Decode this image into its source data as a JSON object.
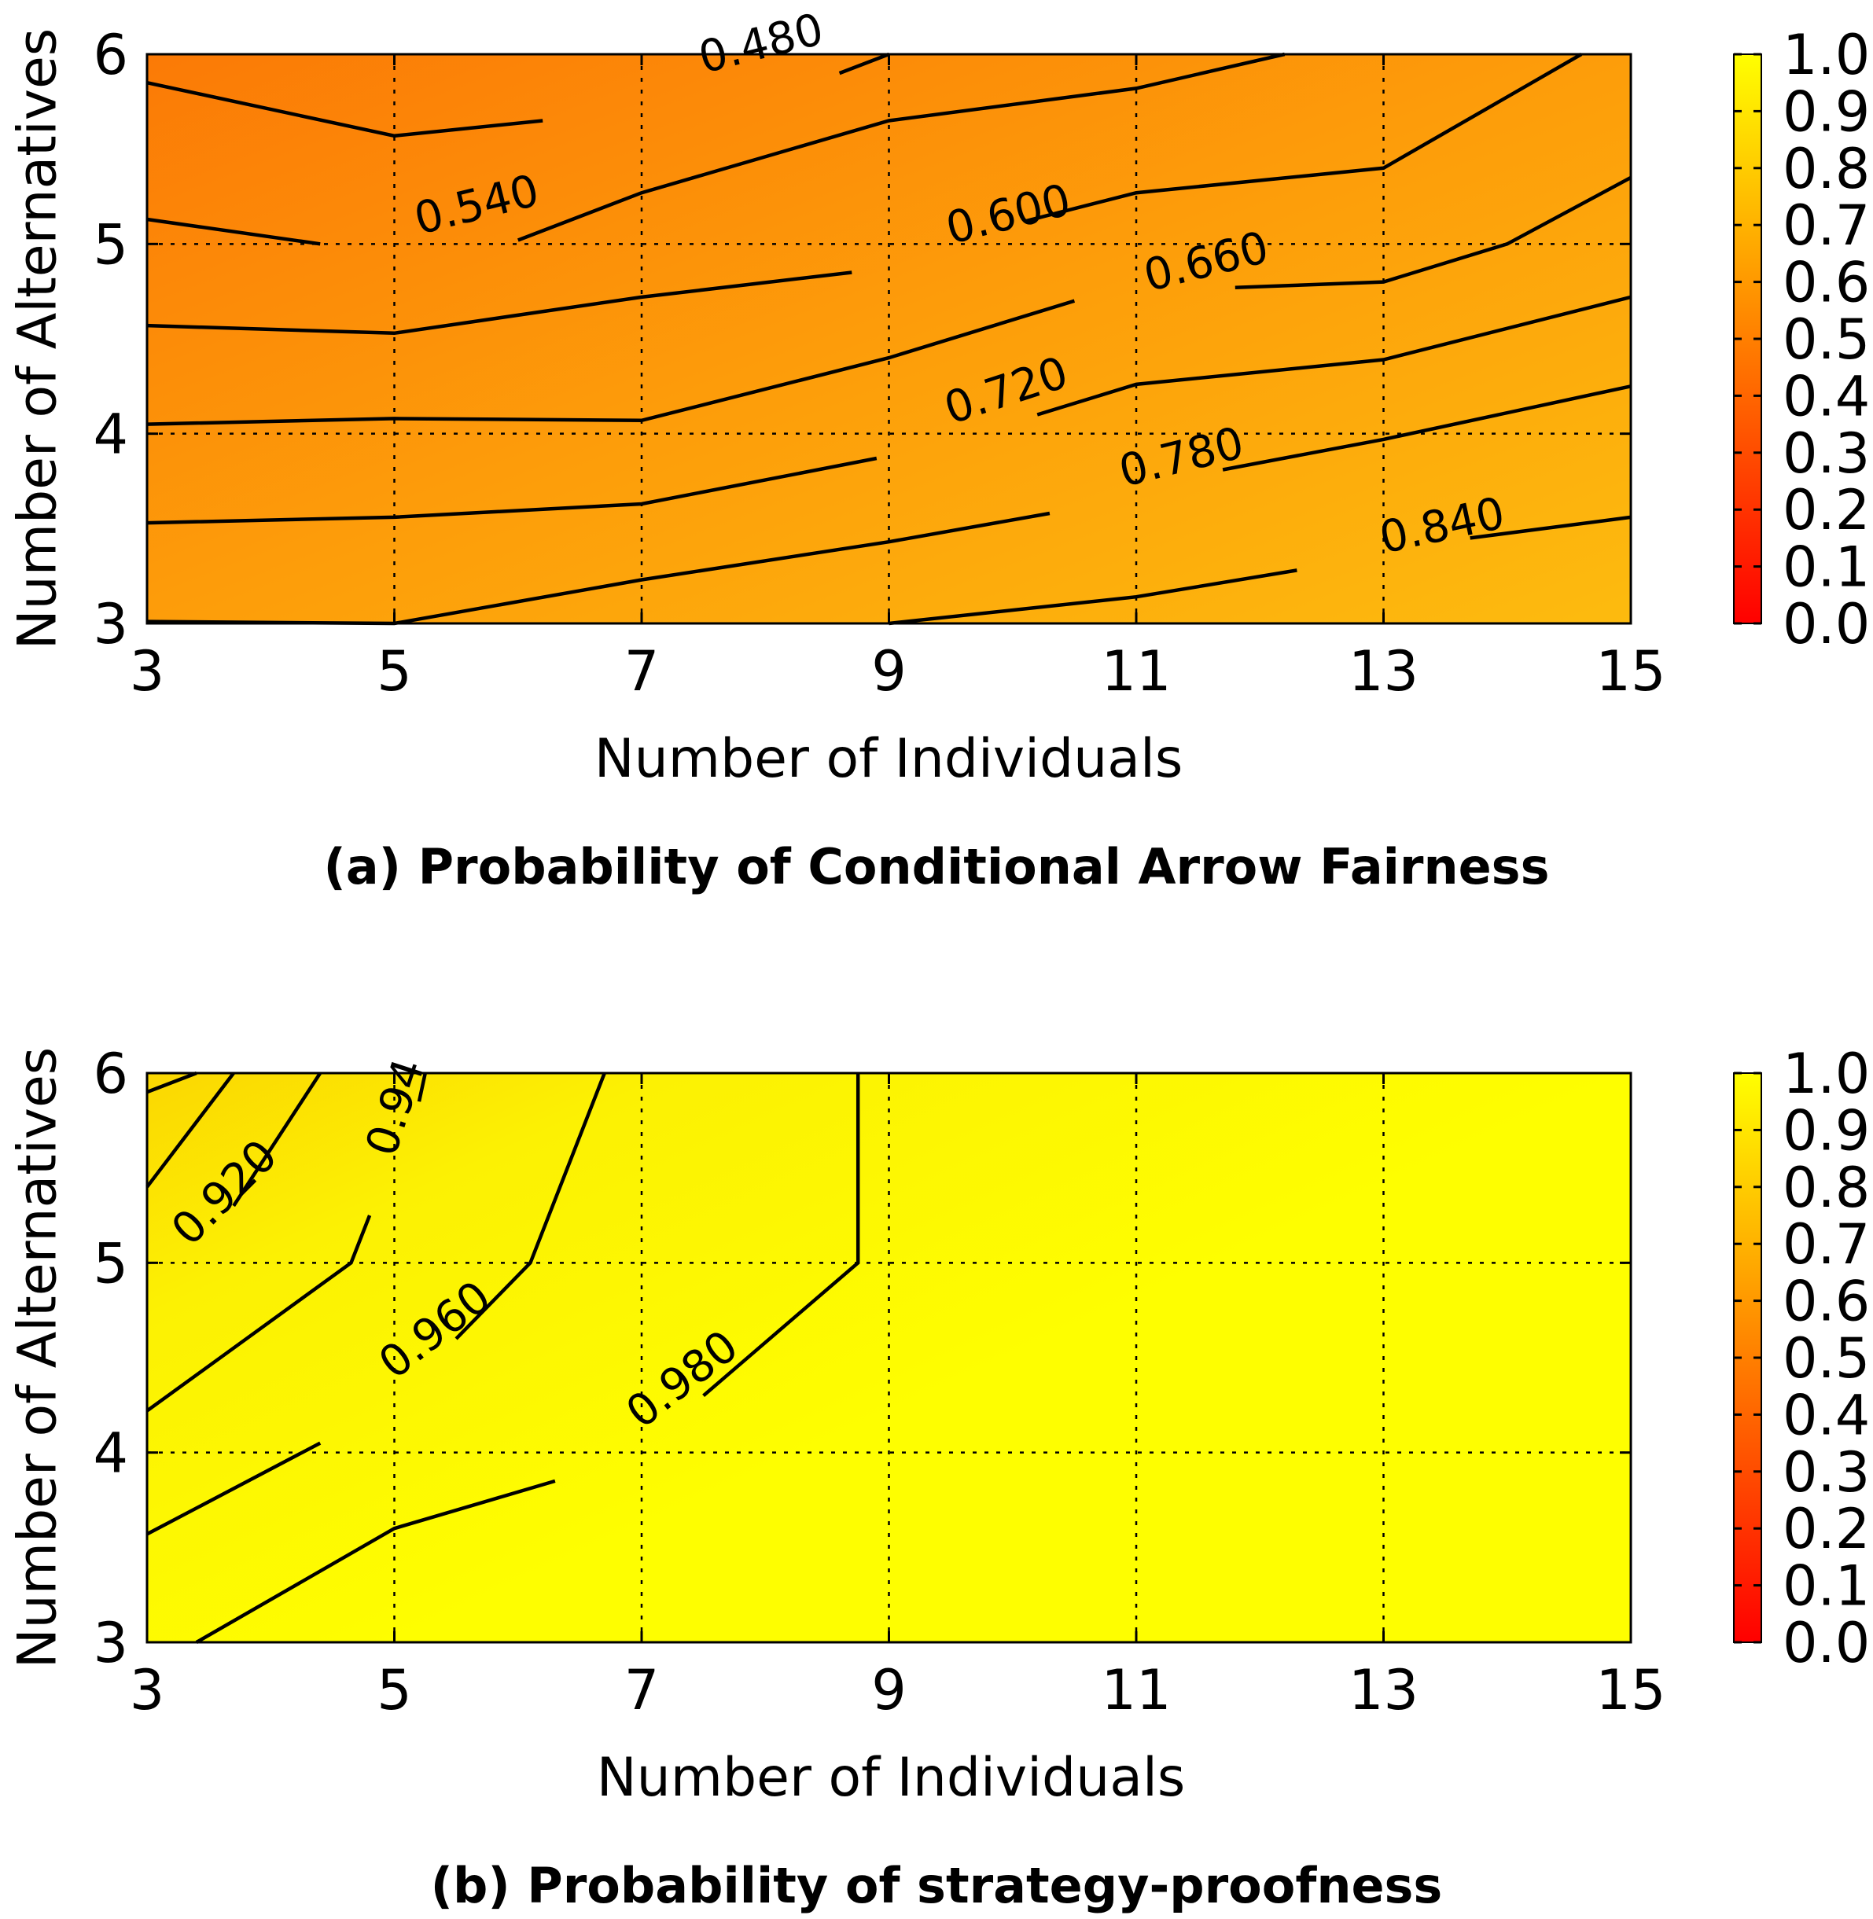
{
  "chart_data": [
    {
      "id": "a",
      "type": "heatmap",
      "caption": "(a) Probability of Conditional Arrow Fairness",
      "xlabel": "Number of Individuals",
      "ylabel": "Number of Alternatives",
      "x_ticks": [
        3,
        5,
        7,
        9,
        11,
        13,
        15
      ],
      "y_ticks": [
        3,
        4,
        5,
        6
      ],
      "xlim": [
        3,
        15
      ],
      "ylim": [
        3,
        6
      ],
      "grid": true,
      "colorbar": {
        "ticks": [
          "1.0",
          "0.9",
          "0.8",
          "0.7",
          "0.6",
          "0.5",
          "0.4",
          "0.3",
          "0.2",
          "0.1",
          "0.0"
        ],
        "range": [
          0,
          1
        ],
        "colors": [
          "#ff0000",
          "#ff7f00",
          "#ffff00"
        ]
      },
      "fill_color": "#fda80b",
      "contours": [
        {
          "level": "",
          "points": [
            [
              3,
              5.85
            ],
            [
              5,
              5.57
            ],
            [
              6.2,
              5.65
            ]
          ]
        },
        {
          "level": "0.480",
          "label_at": [
            7.5,
            5.9
          ],
          "label_angle": -14,
          "points": [
            [
              8.6,
              5.9
            ],
            [
              9,
              6
            ]
          ]
        },
        {
          "level": "",
          "points": [
            [
              3,
              5.13
            ],
            [
              4.4,
              5.0
            ]
          ]
        },
        {
          "level": "0.540",
          "label_at": [
            5.2,
            5.05
          ],
          "label_angle": -14,
          "points": [
            [
              6.0,
              5.02
            ],
            [
              7,
              5.27
            ],
            [
              9,
              5.65
            ],
            [
              11,
              5.82
            ],
            [
              12.2,
              6.0
            ]
          ]
        },
        {
          "level": "",
          "points": [
            [
              3,
              4.57
            ],
            [
              5,
              4.53
            ],
            [
              7,
              4.72
            ],
            [
              8.7,
              4.85
            ]
          ]
        },
        {
          "level": "0.600",
          "label_at": [
            9.5,
            5.0
          ],
          "label_angle": -14,
          "points": [
            [
              10.1,
              5.12
            ],
            [
              11,
              5.27
            ],
            [
              13,
              5.4
            ],
            [
              14.6,
              6.0
            ]
          ]
        },
        {
          "level": "",
          "points": [
            [
              3,
              4.05
            ],
            [
              5,
              4.08
            ],
            [
              7,
              4.07
            ],
            [
              9,
              4.4
            ],
            [
              10.5,
              4.7
            ]
          ]
        },
        {
          "level": "0.660",
          "label_at": [
            11.1,
            4.75
          ],
          "label_angle": -14,
          "points": [
            [
              11.8,
              4.77
            ],
            [
              13,
              4.8
            ],
            [
              14,
              5.0
            ],
            [
              15,
              5.35
            ]
          ]
        },
        {
          "level": "",
          "points": [
            [
              3,
              3.53
            ],
            [
              5,
              3.56
            ],
            [
              7,
              3.63
            ],
            [
              8.9,
              3.87
            ]
          ]
        },
        {
          "level": "0.720",
          "label_at": [
            9.5,
            4.05
          ],
          "label_angle": -18,
          "points": [
            [
              10.2,
              4.1
            ],
            [
              11,
              4.26
            ],
            [
              13,
              4.39
            ],
            [
              15,
              4.72
            ]
          ]
        },
        {
          "level": "",
          "points": [
            [
              3,
              3.01
            ],
            [
              5,
              3.0
            ],
            [
              7,
              3.23
            ],
            [
              9,
              3.43
            ],
            [
              10.3,
              3.58
            ]
          ]
        },
        {
          "level": "0.780",
          "label_at": [
            10.9,
            3.72
          ],
          "label_angle": -14,
          "points": [
            [
              11.7,
              3.81
            ],
            [
              13,
              3.97
            ],
            [
              15,
              4.25
            ]
          ]
        },
        {
          "level": "",
          "points": [
            [
              9,
              3.0
            ],
            [
              11,
              3.14
            ],
            [
              12.3,
              3.28
            ]
          ]
        },
        {
          "level": "0.840",
          "label_at": [
            13.0,
            3.37
          ],
          "label_angle": -12,
          "points": [
            [
              13.7,
              3.45
            ],
            [
              15,
              3.56
            ]
          ]
        }
      ]
    },
    {
      "id": "b",
      "type": "heatmap",
      "caption": "(b) Probability of strategy-proofness",
      "xlabel": "Number of Individuals",
      "ylabel": "Number of Alternatives",
      "x_ticks": [
        3,
        5,
        7,
        9,
        11,
        13,
        15
      ],
      "y_ticks": [
        3,
        4,
        5,
        6
      ],
      "xlim": [
        3,
        15
      ],
      "ylim": [
        3,
        6
      ],
      "grid": true,
      "colorbar": {
        "ticks": [
          "1.0",
          "0.9",
          "0.8",
          "0.7",
          "0.6",
          "0.5",
          "0.4",
          "0.3",
          "0.2",
          "0.1",
          "0.0"
        ],
        "range": [
          0,
          1
        ],
        "colors": [
          "#ff0000",
          "#ff7f00",
          "#ffff00"
        ]
      },
      "fill_color": "#fcf302",
      "contours": [
        {
          "level": "",
          "points": [
            [
              3,
              5.9
            ],
            [
              3.4,
              6.0
            ]
          ]
        },
        {
          "level": "",
          "points": [
            [
              3,
              5.4
            ],
            [
              3.7,
              6.0
            ]
          ]
        },
        {
          "level": "0.920",
          "label_at": [
            3.35,
            5.08
          ],
          "label_angle": -45,
          "points": [
            [
              3.7,
              5.3
            ],
            [
              4.4,
              6.0
            ]
          ]
        },
        {
          "level": "",
          "points": [
            [
              3,
              4.22
            ],
            [
              4.65,
              5.0
            ],
            [
              4.8,
              5.25
            ]
          ]
        },
        {
          "level": "0.94",
          "label_at": [
            5.0,
            5.55
          ],
          "label_angle": -72,
          "points": [
            [
              5.2,
              5.85
            ],
            [
              5.25,
              6.0
            ]
          ]
        },
        {
          "level": "",
          "points": [
            [
              3,
              3.57
            ],
            [
              4.4,
              4.05
            ]
          ]
        },
        {
          "level": "0.960",
          "label_at": [
            5.0,
            4.38
          ],
          "label_angle": -38,
          "points": [
            [
              5.5,
              4.6
            ],
            [
              6.1,
              5.0
            ],
            [
              6.7,
              6.0
            ]
          ]
        },
        {
          "level": "",
          "points": [
            [
              3.4,
              3.0
            ],
            [
              5,
              3.6
            ],
            [
              6.3,
              3.85
            ]
          ]
        },
        {
          "level": "0.980",
          "label_at": [
            7.0,
            4.12
          ],
          "label_angle": -38,
          "points": [
            [
              7.5,
              4.3
            ],
            [
              8.75,
              5.0
            ],
            [
              8.75,
              6.0
            ]
          ]
        }
      ]
    }
  ]
}
